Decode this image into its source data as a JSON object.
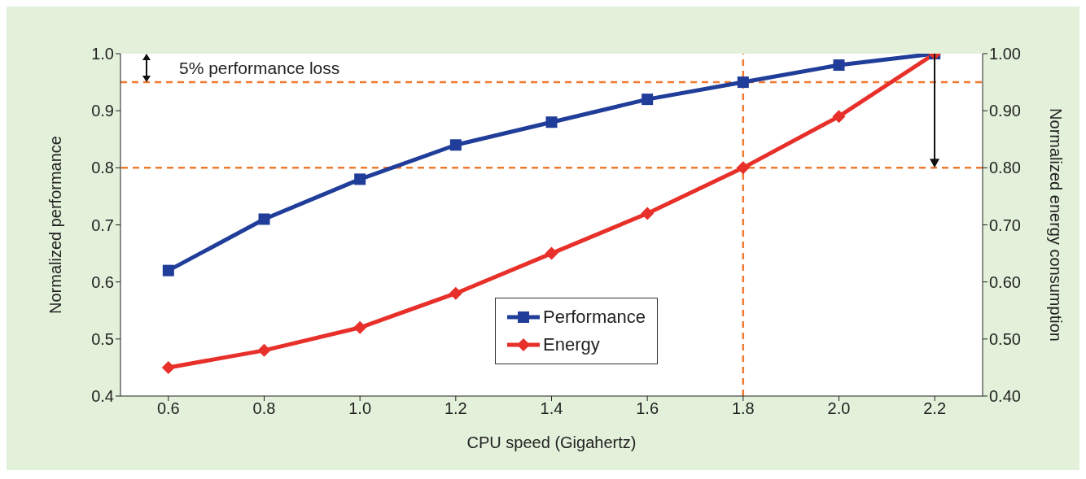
{
  "chart_data": {
    "type": "line",
    "xlabel": "CPU speed (Gigahertz)",
    "ylabel": "Normalized performance",
    "y2label": "Normalized energy consumption",
    "x": [
      0.6,
      0.8,
      1.0,
      1.2,
      1.4,
      1.6,
      1.8,
      2.0,
      2.2
    ],
    "series": [
      {
        "name": "Performance",
        "color": "#1f3d99",
        "marker": "square",
        "values": [
          0.62,
          0.71,
          0.78,
          0.84,
          0.88,
          0.92,
          0.95,
          0.98,
          1.0
        ]
      },
      {
        "name": "Energy",
        "color": "#e8302a",
        "marker": "diamond",
        "axis": "y2",
        "values": [
          0.45,
          0.48,
          0.52,
          0.58,
          0.65,
          0.72,
          0.8,
          0.89,
          1.0
        ]
      }
    ],
    "xlim": [
      0.5,
      2.3
    ],
    "xticks": [
      {
        "value": 0.6,
        "label": "0.6"
      },
      {
        "value": 0.8,
        "label": "0.8"
      },
      {
        "value": 1.0,
        "label": "1.0"
      },
      {
        "value": 1.2,
        "label": "1.2"
      },
      {
        "value": 1.4,
        "label": "1.4"
      },
      {
        "value": 1.6,
        "label": "1.6"
      },
      {
        "value": 1.8,
        "label": "1.8"
      },
      {
        "value": 2.0,
        "label": "2.0"
      },
      {
        "value": 2.2,
        "label": "2.2"
      }
    ],
    "ylim": [
      0.4,
      1.0
    ],
    "yticks": [
      {
        "value": 0.4,
        "label": "0.4"
      },
      {
        "value": 0.5,
        "label": "0.5"
      },
      {
        "value": 0.6,
        "label": "0.6"
      },
      {
        "value": 0.7,
        "label": "0.7"
      },
      {
        "value": 0.8,
        "label": "0.8"
      },
      {
        "value": 0.9,
        "label": "0.9"
      },
      {
        "value": 1.0,
        "label": "1.0"
      }
    ],
    "y2lim": [
      0.4,
      1.0
    ],
    "y2ticks": [
      {
        "value": 0.4,
        "label": "0.40"
      },
      {
        "value": 0.5,
        "label": "0.50"
      },
      {
        "value": 0.6,
        "label": "0.60"
      },
      {
        "value": 0.7,
        "label": "0.70"
      },
      {
        "value": 0.8,
        "label": "0.80"
      },
      {
        "value": 0.9,
        "label": "0.90"
      },
      {
        "value": 1.0,
        "label": "1.00"
      }
    ],
    "ref_lines": [
      {
        "axis": "y",
        "value": 0.95,
        "color": "#f07a30",
        "line_style": "dashed"
      },
      {
        "axis": "x",
        "value": 1.8,
        "color": "#f07a30",
        "line_style": "dashed"
      },
      {
        "axis": "y2",
        "value": 0.8,
        "color": "#f07a30",
        "line_style": "dashed"
      }
    ],
    "annotations": [
      "5% performance loss"
    ],
    "legend": "bottom",
    "grid": false,
    "line_style": "solid"
  }
}
